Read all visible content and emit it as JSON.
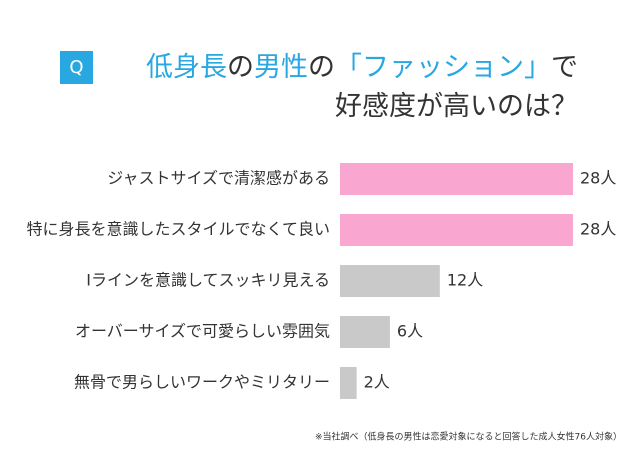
{
  "badge": "Q",
  "chart_data": {
    "type": "hbar",
    "title_segments": [
      {
        "text": "低身長",
        "color": "#29a7e1",
        "line": 0
      },
      {
        "text": "の",
        "color": "#333333",
        "line": 0
      },
      {
        "text": "男性",
        "color": "#29a7e1",
        "line": 0
      },
      {
        "text": "の",
        "color": "#333333",
        "line": 0
      },
      {
        "text": "「ファッション」",
        "color": "#29a7e1",
        "line": 0
      },
      {
        "text": "で",
        "color": "#333333",
        "line": 0
      },
      {
        "text": "好感度が高いのは？",
        "color": "#333333",
        "line": 1
      }
    ],
    "categories": [
      "ジャストサイズで清潔感がある",
      "特に身長を意識したスタイルでなくて良い",
      "Iラインを意識してスッキリ見える",
      "オーバーサイズで可愛らしい雰囲気",
      "無骨で男らしいワークやミリタリー"
    ],
    "values": [
      28,
      28,
      12,
      6,
      2
    ],
    "value_labels": [
      "28人",
      "28人",
      "12人",
      "6人",
      "2人"
    ],
    "colors": [
      "#f9a6d0",
      "#f9a6d0",
      "#c9c9c9",
      "#c9c9c9",
      "#c9c9c9"
    ],
    "footnote": "※当社調べ（低身長の男性は恋愛対象になると回答した成人女性76人対象）"
  }
}
